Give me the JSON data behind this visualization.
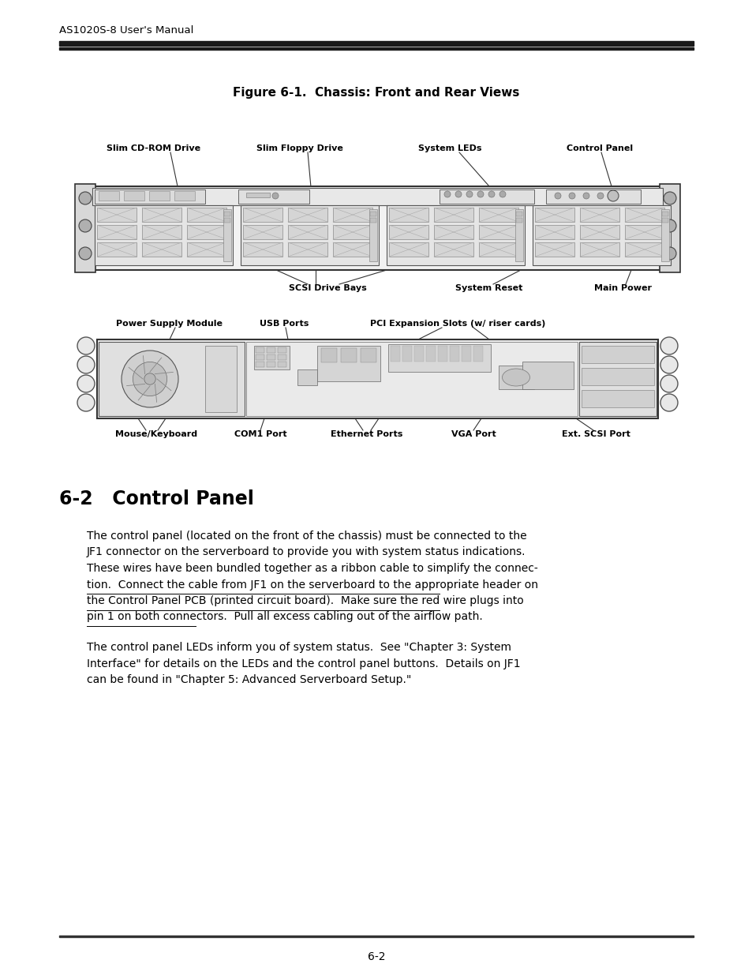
{
  "header_text": "AS1020S-8 User's Manual",
  "figure_title": "Figure 6-1.  Chassis: Front and Rear Views",
  "section_title": "6-2   Control Panel",
  "para1_lines": [
    [
      "The control panel (located on the front of the chassis) must be connected to the",
      false
    ],
    [
      "JF1 connector on the serverboard to provide you with system status indications.",
      false
    ],
    [
      "These wires have been bundled together as a ribbon cable to simplify the connec-",
      false
    ],
    [
      "tion.  Connect the cable from JF1 on the serverboard to the appropriate header on",
      true
    ],
    [
      "the Control Panel PCB (printed circuit board).  Make sure the red wire plugs into",
      true
    ],
    [
      "pin 1 on both connectors.  Pull all excess cabling out of the airflow path.",
      true
    ]
  ],
  "para2_lines": [
    "The control panel LEDs inform you of system status.  See \"Chapter 3: System",
    "Interface\" for details on the LEDs and the control panel buttons.  Details on JF1",
    "can be found in \"Chapter 5: Advanced Serverboard Setup.\""
  ],
  "footer_text": "6-2",
  "bg_color": "#ffffff",
  "text_color": "#000000"
}
